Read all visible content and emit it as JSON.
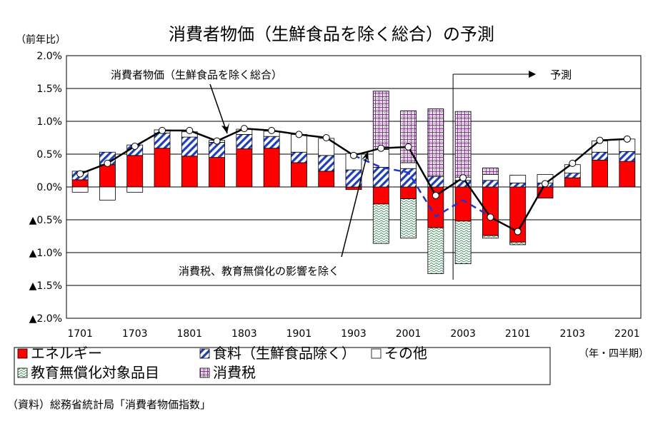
{
  "chart_data": {
    "type": "bar",
    "title": "消費者物価（生鮮食品を除く総合）の予測",
    "ylabel": "（前年比）",
    "xlabel_note": "（年・四半期）",
    "source": "（資料）総務省統計局「消費者物価指数」",
    "ylim": [
      -2.0,
      2.0
    ],
    "y_ticks": [
      "2.0%",
      "1.5%",
      "1.0%",
      "0.5%",
      "0.0%",
      "▲0.5%",
      "▲1.0%",
      "▲1.5%",
      "▲2.0%"
    ],
    "x_tick_labels": [
      "1701",
      "1703",
      "1801",
      "1803",
      "1901",
      "1903",
      "2001",
      "2003",
      "2101",
      "2103",
      "2201"
    ],
    "categories": [
      "1701",
      "1702",
      "1703",
      "1704",
      "1801",
      "1802",
      "1803",
      "1804",
      "1901",
      "1902",
      "1903",
      "1904",
      "2001",
      "2002",
      "2003",
      "2004",
      "2101",
      "2102",
      "2103",
      "2104",
      "2201"
    ],
    "series": [
      {
        "name": "エネルギー",
        "color": "#ff0000",
        "values": [
          0.11,
          0.34,
          0.48,
          0.59,
          0.47,
          0.45,
          0.58,
          0.59,
          0.37,
          0.24,
          -0.04,
          -0.26,
          -0.18,
          -0.62,
          -0.52,
          -0.74,
          -0.84,
          -0.17,
          0.14,
          0.41,
          0.39
        ]
      },
      {
        "name": "食料（生鮮食品除く）",
        "color": "#1f3fb5",
        "values": [
          0.13,
          0.19,
          0.16,
          0.23,
          0.29,
          0.23,
          0.22,
          0.18,
          0.16,
          0.24,
          0.26,
          0.3,
          0.28,
          0.16,
          0.1,
          0.1,
          0.06,
          0.06,
          0.07,
          0.12,
          0.15
        ]
      },
      {
        "name": "その他",
        "color": "#ffffff",
        "values": [
          -0.08,
          -0.2,
          -0.08,
          0.05,
          0.08,
          0.03,
          0.08,
          0.08,
          0.27,
          0.26,
          0.25,
          0.27,
          0.09,
          0.0,
          0.05,
          0.09,
          0.12,
          0.13,
          0.13,
          0.17,
          0.19
        ]
      },
      {
        "name": "教育無償化対象品目",
        "color": "#3a8a5a",
        "values": [
          0,
          0,
          0,
          0,
          0,
          0,
          0,
          0,
          0,
          0,
          0,
          -0.6,
          -0.6,
          -0.7,
          -0.65,
          -0.04,
          -0.04,
          0,
          0,
          0,
          0
        ]
      },
      {
        "name": "消費税",
        "color": "#8a2a9a",
        "values": [
          0,
          0,
          0,
          0,
          0,
          0,
          0,
          0,
          0,
          0,
          0,
          0.89,
          0.79,
          1.03,
          1.0,
          0.1,
          0,
          0,
          0,
          0,
          0
        ]
      },
      {
        "name": "消費者物価（生鮮食品を除く総合）",
        "color": "#000000",
        "type": "line",
        "values": [
          0.2,
          0.36,
          0.62,
          0.86,
          0.86,
          0.7,
          0.89,
          0.86,
          0.8,
          0.75,
          0.48,
          0.59,
          0.61,
          -0.13,
          0.14,
          -0.46,
          -0.68,
          0.05,
          0.36,
          0.71,
          0.73
        ]
      },
      {
        "name": "消費税、教育無償化の影響を除く",
        "color": "#2233cc",
        "type": "line",
        "dashed": true,
        "values": [
          null,
          null,
          null,
          null,
          null,
          null,
          null,
          null,
          null,
          null,
          0.48,
          0.3,
          0.22,
          -0.45,
          -0.2,
          -0.45,
          null,
          null,
          null,
          null,
          null
        ]
      }
    ],
    "annotations": {
      "line_label": "消費者物価（生鮮食品を除く総合）",
      "dashed_label": "消費税、教育無償化の影響を除く",
      "forecast_label": "予測",
      "forecast_start": "2003"
    },
    "legend": {
      "placement": "bottom",
      "rows": [
        [
          "エネルギー",
          "食料（生鮮食品除く）",
          "その他"
        ],
        [
          "教育無償化対象品目",
          "消費税"
        ]
      ]
    },
    "grid": true
  }
}
